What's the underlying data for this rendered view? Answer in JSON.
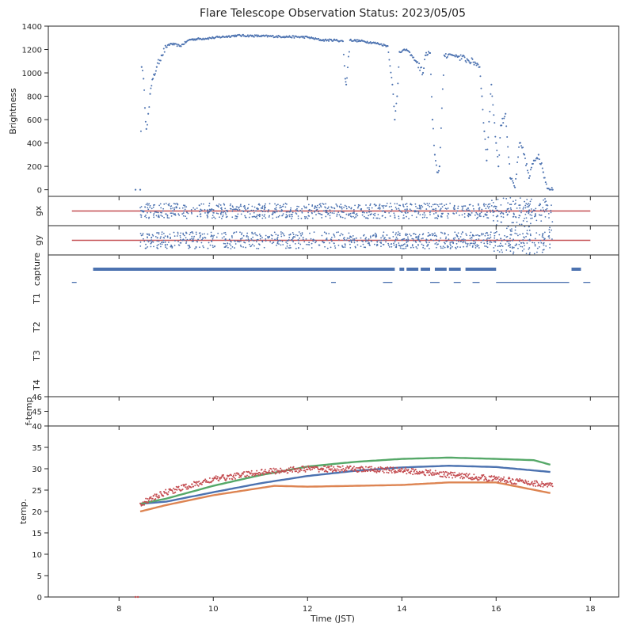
{
  "chart_data": {
    "type": "scatter",
    "title": "Flare Telescope Observation Status: 2023/05/05",
    "xlabel": "Time (JST)",
    "xlim": [
      6.5,
      18.6
    ],
    "xticks": [
      8,
      10,
      12,
      14,
      16,
      18
    ],
    "colors": {
      "blue": "#4c72b0",
      "orange": "#dd8452",
      "green": "#55a868",
      "red": "#c44e52",
      "axis": "#262626"
    },
    "panels": [
      {
        "id": "brightness",
        "ylabel": "Brightness",
        "ylim": [
          -50,
          1400
        ],
        "yticks": [
          0,
          200,
          400,
          600,
          800,
          1000,
          1200,
          1400
        ],
        "series": [
          {
            "color": "blue",
            "kind": "dots",
            "points": [
              [
                8.35,
                0
              ],
              [
                8.45,
                0
              ],
              [
                8.48,
                1050
              ],
              [
                8.52,
                950
              ],
              [
                8.55,
                700
              ],
              [
                8.58,
                520
              ],
              [
                8.62,
                650
              ],
              [
                8.66,
                820
              ],
              [
                8.72,
                950
              ],
              [
                8.8,
                1050
              ],
              [
                8.9,
                1150
              ],
              [
                9.0,
                1220
              ],
              [
                9.1,
                1250
              ],
              [
                9.3,
                1230
              ],
              [
                9.5,
                1285
              ],
              [
                10.0,
                1300
              ],
              [
                10.5,
                1320
              ],
              [
                11.0,
                1315
              ],
              [
                11.5,
                1310
              ],
              [
                12.0,
                1305
              ],
              [
                12.3,
                1280
              ],
              [
                12.6,
                1280
              ],
              [
                12.75,
                1270
              ],
              [
                12.8,
                950
              ],
              [
                12.82,
                900
              ],
              [
                12.9,
                1280
              ],
              [
                13.2,
                1270
              ],
              [
                13.5,
                1250
              ],
              [
                13.7,
                1230
              ],
              [
                13.8,
                900
              ],
              [
                13.85,
                600
              ],
              [
                13.9,
                800
              ],
              [
                13.95,
                1180
              ],
              [
                14.1,
                1200
              ],
              [
                14.3,
                1100
              ],
              [
                14.45,
                1000
              ],
              [
                14.5,
                1150
              ],
              [
                14.6,
                1170
              ],
              [
                14.65,
                600
              ],
              [
                14.7,
                300
              ],
              [
                14.75,
                150
              ],
              [
                14.8,
                200
              ],
              [
                14.9,
                1150
              ],
              [
                15.0,
                1160
              ],
              [
                15.2,
                1140
              ],
              [
                15.4,
                1110
              ],
              [
                15.6,
                1080
              ],
              [
                15.65,
                1050
              ],
              [
                15.7,
                800
              ],
              [
                15.75,
                500
              ],
              [
                15.8,
                250
              ],
              [
                15.9,
                900
              ],
              [
                16.0,
                400
              ],
              [
                16.05,
                200
              ],
              [
                16.1,
                550
              ],
              [
                16.2,
                650
              ],
              [
                16.3,
                100
              ],
              [
                16.4,
                20
              ],
              [
                16.5,
                400
              ],
              [
                16.6,
                300
              ],
              [
                16.7,
                100
              ],
              [
                16.8,
                250
              ],
              [
                16.9,
                300
              ],
              [
                17.0,
                150
              ],
              [
                17.1,
                10
              ],
              [
                17.2,
                0
              ]
            ]
          }
        ]
      },
      {
        "id": "gx",
        "ylabel": "gx",
        "ylim": [
          -1,
          1
        ],
        "series": [
          {
            "color": "red",
            "kind": "line",
            "points": [
              [
                7.0,
                0
              ],
              [
                18.0,
                0
              ]
            ]
          },
          {
            "color": "blue",
            "kind": "band",
            "x_range": [
              8.45,
              17.2
            ],
            "center": 0,
            "spread": 0.55
          }
        ]
      },
      {
        "id": "gy",
        "ylabel": "gy",
        "ylim": [
          -1,
          1
        ],
        "series": [
          {
            "color": "red",
            "kind": "line",
            "points": [
              [
                7.0,
                0
              ],
              [
                18.0,
                0
              ]
            ]
          },
          {
            "color": "blue",
            "kind": "band",
            "x_range": [
              8.45,
              17.2
            ],
            "center": 0,
            "spread": 0.6
          }
        ]
      },
      {
        "id": "status",
        "ylabel_items": [
          "capture",
          "T1",
          "T2",
          "T3",
          "T4"
        ],
        "series": [
          {
            "color": "blue",
            "kind": "bars",
            "row": "capture",
            "segments": [
              [
                7.45,
                13.85
              ],
              [
                13.95,
                14.05
              ],
              [
                14.1,
                14.35
              ],
              [
                14.4,
                14.6
              ],
              [
                14.7,
                14.95
              ],
              [
                15.0,
                15.25
              ],
              [
                15.35,
                16.0
              ],
              [
                17.6,
                17.8
              ]
            ]
          },
          {
            "color": "blue",
            "kind": "thinbars",
            "row": "T1",
            "segments": [
              [
                7.0,
                7.1
              ],
              [
                12.5,
                12.6
              ],
              [
                13.6,
                13.8
              ],
              [
                14.6,
                14.8
              ],
              [
                15.1,
                15.25
              ],
              [
                15.5,
                15.65
              ],
              [
                16.0,
                17.55
              ],
              [
                17.85,
                18.0
              ]
            ]
          }
        ]
      },
      {
        "id": "f-temp",
        "ylabel": "f-temp",
        "ylim": [
          44.0,
          46.0
        ],
        "yticks": [
          45,
          46
        ],
        "series": []
      },
      {
        "id": "temp",
        "ylabel": "temp.",
        "ylim": [
          0,
          40
        ],
        "yticks": [
          0,
          5,
          10,
          15,
          20,
          25,
          30,
          35,
          40
        ],
        "series": [
          {
            "color": "blue",
            "kind": "line",
            "points": [
              [
                8.45,
                21.8
              ],
              [
                9.0,
                22.3
              ],
              [
                10.0,
                24.5
              ],
              [
                11.0,
                26.6
              ],
              [
                12.0,
                28.3
              ],
              [
                13.0,
                29.5
              ],
              [
                14.0,
                30.3
              ],
              [
                15.0,
                30.7
              ],
              [
                16.0,
                30.4
              ],
              [
                17.2,
                29.2
              ]
            ]
          },
          {
            "color": "orange",
            "kind": "line",
            "points": [
              [
                8.45,
                20.0
              ],
              [
                9.0,
                21.5
              ],
              [
                10.0,
                23.8
              ],
              [
                11.0,
                25.5
              ],
              [
                11.3,
                26.0
              ],
              [
                12.0,
                25.8
              ],
              [
                13.0,
                26.0
              ],
              [
                14.0,
                26.2
              ],
              [
                15.0,
                26.8
              ],
              [
                16.0,
                26.8
              ],
              [
                17.2,
                24.2
              ]
            ]
          },
          {
            "color": "green",
            "kind": "line",
            "points": [
              [
                8.45,
                21.8
              ],
              [
                9.0,
                23.0
              ],
              [
                10.0,
                26.0
              ],
              [
                11.0,
                28.5
              ],
              [
                12.0,
                30.5
              ],
              [
                13.0,
                31.6
              ],
              [
                14.0,
                32.3
              ],
              [
                15.0,
                32.6
              ],
              [
                16.0,
                32.3
              ],
              [
                16.8,
                32.0
              ],
              [
                17.2,
                30.8
              ]
            ]
          },
          {
            "color": "red",
            "kind": "noisy",
            "points": [
              [
                8.45,
                21.8
              ],
              [
                9.0,
                24.5
              ],
              [
                10.0,
                27.5
              ],
              [
                11.0,
                29.2
              ],
              [
                12.0,
                30.0
              ],
              [
                13.0,
                29.9
              ],
              [
                14.0,
                29.6
              ],
              [
                15.0,
                28.6
              ],
              [
                16.0,
                27.6
              ],
              [
                17.2,
                26.1
              ]
            ]
          },
          {
            "color": "red",
            "kind": "dots",
            "points": [
              [
                8.35,
                0
              ],
              [
                8.4,
                0
              ]
            ]
          }
        ]
      }
    ]
  }
}
